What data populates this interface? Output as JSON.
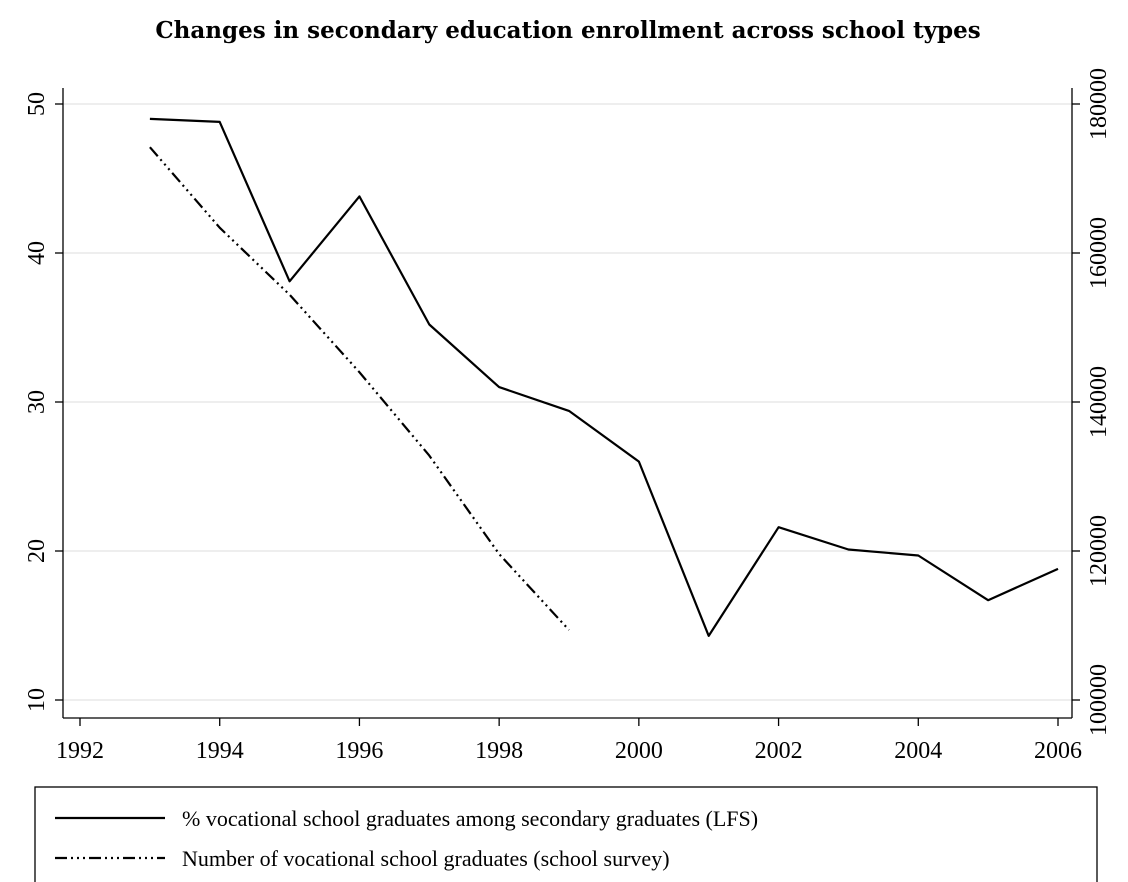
{
  "chart_data": {
    "type": "line",
    "title": "Changes in secondary education enrollment across school types",
    "x_ticks": [
      "1992",
      "1994",
      "1996",
      "1998",
      "2000",
      "2002",
      "2004",
      "2006"
    ],
    "y_left_ticks": [
      "10",
      "20",
      "30",
      "40",
      "50"
    ],
    "y_right_ticks": [
      "100000",
      "120000",
      "140000",
      "160000",
      "180000"
    ],
    "xlim": [
      1992,
      2006
    ],
    "ylim_left": [
      10,
      50
    ],
    "ylim_right": [
      100000,
      180000
    ],
    "grid": true,
    "legend_position": "bottom",
    "series": [
      {
        "name": "% vocational school graduates among secondary graduates (LFS)",
        "axis": "left",
        "style": "solid",
        "x": [
          1993,
          1994,
          1995,
          1996,
          1997,
          1998,
          1999,
          2000,
          2001,
          2002,
          2003,
          2004,
          2005,
          2006
        ],
        "y": [
          49.0,
          48.8,
          38.1,
          43.8,
          35.2,
          31.0,
          29.4,
          26.0,
          14.3,
          21.6,
          20.1,
          19.7,
          16.7,
          18.8
        ]
      },
      {
        "name": "Number of vocational school graduates (school survey)",
        "axis": "right",
        "style": "dash-dot",
        "x": [
          1993,
          1994,
          1995,
          1996,
          1997,
          1998,
          1999
        ],
        "y": [
          174200,
          163400,
          154400,
          144000,
          132800,
          119600,
          109400
        ]
      }
    ]
  }
}
